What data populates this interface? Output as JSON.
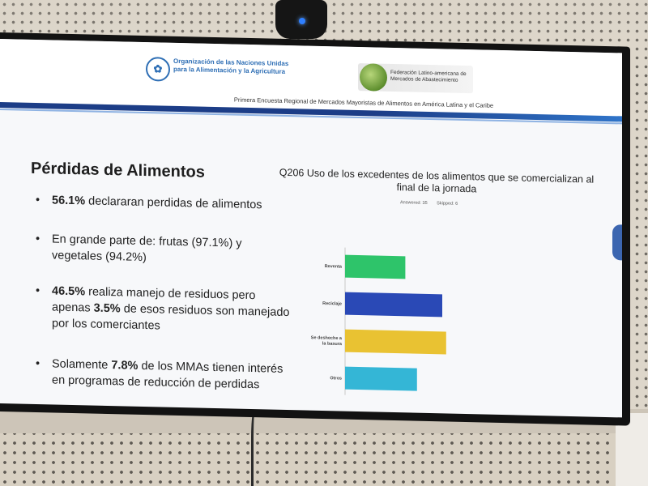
{
  "header": {
    "fao_name": "Organización de las Naciones Unidas para la Alimentación y la Agricultura",
    "fed_name": "Federación Latino-americana de Mercados de Abastecimiento",
    "subheading": "Primera Encuesta Regional de Mercados Mayoristas de Alimentos en América Latina y el Caribe"
  },
  "slide": {
    "title": "Pérdidas de Alimentos",
    "bullets": [
      {
        "bold": "56.1%",
        "text": " declararan perdidas de alimentos"
      },
      {
        "text": "En grande parte de:  frutas (97.1%) y vegetales (94.2%)"
      },
      {
        "bold": "46.5%",
        "text": " realiza manejo de residuos pero apenas ",
        "bold2": "3.5%",
        "text2": " de esos residuos son manejado por los comerciantes"
      },
      {
        "text": "Solamente ",
        "bold": "7.8%",
        "text2": " de los MMAs tienen interés en programas de reducción de perdidas"
      }
    ]
  },
  "chart": {
    "title": "Q206 Uso de los excedentes de los alimentos que se comercializan al final de la jornada",
    "answered": "Answered: 35",
    "skipped": "Skipped: 6"
  },
  "chart_data": {
    "type": "bar",
    "orientation": "horizontal",
    "categories": [
      "Reventa",
      "Reciclaje",
      "Se desheche a la basura",
      "Otros"
    ],
    "values": [
      31,
      50,
      52,
      37
    ],
    "xlim": [
      0,
      100
    ],
    "x_ticks": [
      "0%",
      "10%",
      "20%",
      "30%",
      "40%",
      "50%",
      "60%",
      "70%",
      "80%",
      "90%",
      "100%"
    ],
    "colors": [
      "#2ec46a",
      "#2a49b6",
      "#e9c232",
      "#34b6d6"
    ],
    "grid": false
  }
}
